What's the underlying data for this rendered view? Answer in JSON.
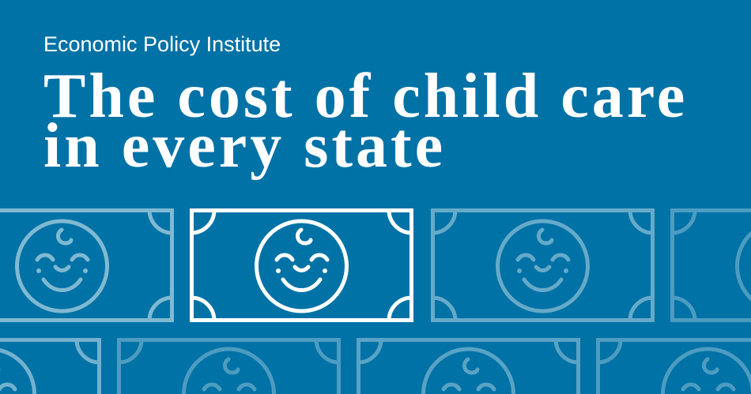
{
  "header": {
    "organization": "Economic Policy Institute",
    "title_line1": "The cost of child care",
    "title_line2": "in every state"
  },
  "colors": {
    "background": "#0072a6",
    "foreground": "#ffffff"
  },
  "illustration": {
    "motif": "baby-face-dollar-bill-icon"
  }
}
